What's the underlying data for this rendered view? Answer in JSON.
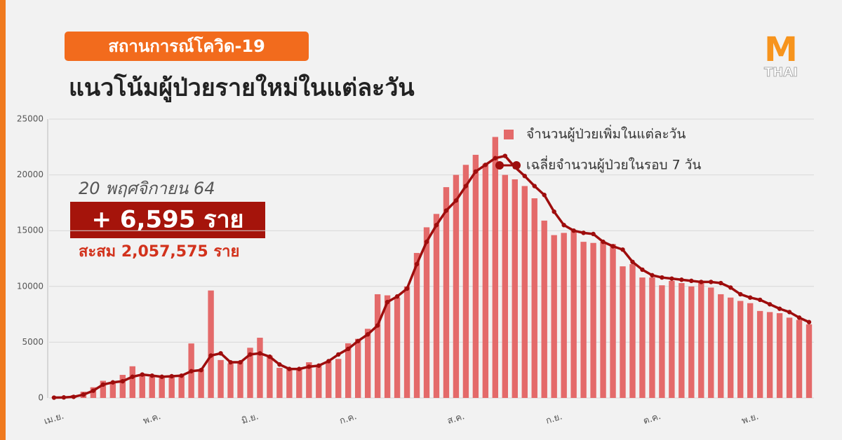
{
  "header": {
    "badge": "สถานการณ์โควิด-19",
    "title": "แนวโน้มผู้ป่วยรายใหม่ในแต่ละวัน"
  },
  "logo": {
    "mark": "M",
    "text": "THAI"
  },
  "callout": {
    "date": "20 พฤศจิกายน 64",
    "today": "+ 6,595 ราย",
    "total": "สะสม 2,057,575 ราย"
  },
  "chart_data": {
    "type": "bar",
    "categories": [
      "เม.ย.",
      null,
      null,
      null,
      null,
      null,
      null,
      null,
      null,
      null,
      "พ.ค.",
      null,
      null,
      null,
      null,
      null,
      null,
      null,
      null,
      null,
      "มิ.ย.",
      null,
      null,
      null,
      null,
      null,
      null,
      null,
      null,
      null,
      "ก.ค.",
      null,
      null,
      null,
      null,
      null,
      null,
      null,
      null,
      null,
      null,
      "ส.ค.",
      null,
      null,
      null,
      null,
      null,
      null,
      null,
      null,
      null,
      "ก.ย.",
      null,
      null,
      null,
      null,
      null,
      null,
      null,
      null,
      null,
      "ต.ค.",
      null,
      null,
      null,
      null,
      null,
      null,
      null,
      null,
      null,
      "พ.ย.",
      null,
      null,
      null,
      null,
      null,
      null
    ],
    "series": [
      {
        "name": "จำนวนผู้ป่วยเพิ่มในแต่ละวัน",
        "type": "bar",
        "color": "#e46a6a",
        "values": [
          30,
          90,
          250,
          560,
          960,
          1540,
          1450,
          2070,
          2840,
          2050,
          1890,
          1940,
          2040,
          1980,
          4887,
          2600,
          9635,
          3400,
          3100,
          3300,
          4500,
          5400,
          3800,
          2700,
          2600,
          2700,
          3200,
          2900,
          3300,
          3500,
          4900,
          5300,
          6200,
          9300,
          9200,
          9000,
          10000,
          13000,
          15300,
          16500,
          18900,
          20000,
          20900,
          21800,
          21000,
          23400,
          20000,
          19600,
          19000,
          17900,
          15900,
          14600,
          14800,
          15000,
          14000,
          13900,
          14000,
          13800,
          11800,
          12000,
          10800,
          10800,
          10100,
          10500,
          10300,
          10000,
          10500,
          9900,
          9300,
          9000,
          8700,
          8500,
          7800,
          7700,
          7600,
          7200,
          7000,
          6600
        ]
      },
      {
        "name": "เฉลี่ยจำนวนผู้ป่วยในรอบ 7 วัน",
        "type": "line",
        "color": "#9e0d0d",
        "values": [
          30,
          50,
          100,
          300,
          650,
          1200,
          1400,
          1500,
          1900,
          2100,
          2000,
          1900,
          1950,
          2000,
          2400,
          2500,
          3800,
          4000,
          3200,
          3200,
          3900,
          4000,
          3700,
          3000,
          2600,
          2600,
          2800,
          2900,
          3300,
          3900,
          4400,
          5100,
          5700,
          6500,
          8600,
          9100,
          9800,
          12000,
          14000,
          15500,
          16800,
          17700,
          19000,
          20300,
          20900,
          21500,
          21700,
          20700,
          19900,
          19000,
          18200,
          16700,
          15500,
          15000,
          14800,
          14700,
          14000,
          13600,
          13300,
          12200,
          11500,
          11000,
          10800,
          10700,
          10600,
          10500,
          10400,
          10400,
          10300,
          9900,
          9300,
          9000,
          8800,
          8400,
          8000,
          7700,
          7200,
          6800
        ]
      }
    ],
    "ylim": [
      0,
      25000
    ],
    "yticks": [
      0,
      5000,
      10000,
      15000,
      20000,
      25000
    ],
    "grid": true
  }
}
